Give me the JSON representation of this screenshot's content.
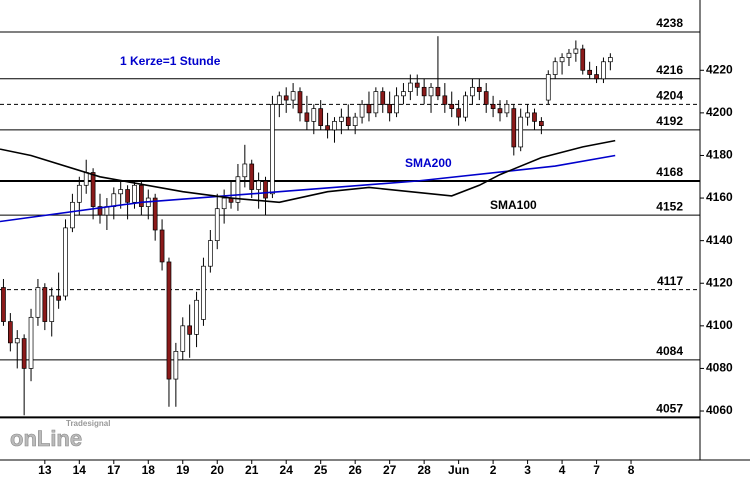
{
  "chart_data": {
    "type": "candlestick",
    "annotation": "1 Kerze=1 Stunde",
    "logo": {
      "small": "Tradesignal",
      "big": "onLine"
    },
    "xlim": [
      -0.5,
      101
    ],
    "xticks": [
      {
        "value": 6,
        "label": "13"
      },
      {
        "value": 11,
        "label": "14"
      },
      {
        "value": 16,
        "label": "17"
      },
      {
        "value": 21,
        "label": "18"
      },
      {
        "value": 26,
        "label": "19"
      },
      {
        "value": 31,
        "label": "20"
      },
      {
        "value": 36,
        "label": "21"
      },
      {
        "value": 41,
        "label": "24"
      },
      {
        "value": 46,
        "label": "25"
      },
      {
        "value": 51,
        "label": "26"
      },
      {
        "value": 56,
        "label": "27"
      },
      {
        "value": 61,
        "label": "28"
      },
      {
        "value": 66,
        "label": "Jun"
      },
      {
        "value": 71,
        "label": "2"
      },
      {
        "value": 76,
        "label": "3"
      },
      {
        "value": 81,
        "label": "4"
      },
      {
        "value": 86,
        "label": "7"
      },
      {
        "value": 91,
        "label": "8"
      }
    ],
    "ylim": [
      4037,
      4253
    ],
    "yticks": [
      4060,
      4080,
      4100,
      4120,
      4140,
      4160,
      4180,
      4200,
      4220
    ],
    "up_color": "#ffffff",
    "down_color": "#8b1a1a",
    "candles": {
      "open": [
        4118,
        4102,
        4092,
        4094,
        4080,
        4104,
        4118,
        4102,
        4114,
        4114,
        4146,
        4158,
        4166,
        4172,
        4156,
        4152,
        4156,
        4162,
        4164,
        4158,
        4166,
        4156,
        4160,
        4145,
        4130,
        4075,
        4088,
        4100,
        4096,
        4103,
        4128,
        4140,
        4155,
        4160,
        4158,
        4170,
        4176,
        4164,
        4168,
        4162,
        4204,
        4208,
        4206,
        4210,
        4200,
        4196,
        4202,
        4194,
        4192,
        4196,
        4198,
        4194,
        4198,
        4204,
        4200,
        4210,
        4204,
        4200,
        4208,
        4210,
        4214,
        4212,
        4208,
        4212,
        4208,
        4204,
        4202,
        4198,
        4208,
        4212,
        4210,
        4204,
        4202,
        4200,
        4202,
        4184,
        4198,
        4200,
        4196,
        4206,
        4218,
        4224,
        4226,
        4228,
        4230,
        4220,
        4218,
        4216,
        4224
      ],
      "high": [
        4122,
        4106,
        4098,
        4096,
        4108,
        4122,
        4120,
        4118,
        4125,
        4150,
        4162,
        4170,
        4178,
        4174,
        4162,
        4160,
        4165,
        4168,
        4166,
        4168,
        4168,
        4164,
        4162,
        4150,
        4132,
        4092,
        4104,
        4110,
        4116,
        4132,
        4145,
        4162,
        4164,
        4168,
        4176,
        4185,
        4178,
        4172,
        4170,
        4208,
        4210,
        4212,
        4214,
        4212,
        4208,
        4204,
        4206,
        4200,
        4198,
        4202,
        4204,
        4200,
        4206,
        4210,
        4212,
        4212,
        4210,
        4212,
        4214,
        4218,
        4218,
        4216,
        4214,
        4236,
        4214,
        4210,
        4206,
        4210,
        4216,
        4216,
        4214,
        4208,
        4206,
        4206,
        4204,
        4202,
        4204,
        4202,
        4198,
        4220,
        4226,
        4228,
        4230,
        4234,
        4232,
        4224,
        4222,
        4226,
        4228
      ],
      "low": [
        4100,
        4088,
        4080,
        4058,
        4074,
        4100,
        4098,
        4095,
        4108,
        4112,
        4144,
        4152,
        4162,
        4150,
        4148,
        4145,
        4150,
        4155,
        4150,
        4155,
        4152,
        4150,
        4140,
        4126,
        4062,
        4062,
        4084,
        4085,
        4090,
        4100,
        4125,
        4136,
        4148,
        4155,
        4154,
        4165,
        4160,
        4155,
        4152,
        4160,
        4198,
        4200,
        4202,
        4196,
        4192,
        4190,
        4192,
        4188,
        4186,
        4190,
        4192,
        4190,
        4195,
        4196,
        4198,
        4200,
        4196,
        4198,
        4204,
        4206,
        4208,
        4204,
        4200,
        4206,
        4200,
        4198,
        4194,
        4196,
        4204,
        4206,
        4200,
        4198,
        4196,
        4198,
        4180,
        4182,
        4194,
        4192,
        4190,
        4204,
        4216,
        4218,
        4222,
        4224,
        4218,
        4216,
        4214,
        4214,
        4220
      ],
      "close": [
        4102,
        4092,
        4094,
        4080,
        4104,
        4118,
        4102,
        4114,
        4112,
        4146,
        4158,
        4166,
        4172,
        4156,
        4152,
        4156,
        4162,
        4164,
        4158,
        4166,
        4156,
        4160,
        4145,
        4130,
        4075,
        4088,
        4100,
        4096,
        4112,
        4128,
        4140,
        4155,
        4160,
        4158,
        4170,
        4176,
        4164,
        4168,
        4160,
        4204,
        4208,
        4206,
        4210,
        4200,
        4196,
        4202,
        4194,
        4192,
        4196,
        4198,
        4194,
        4198,
        4204,
        4200,
        4210,
        4204,
        4200,
        4208,
        4210,
        4214,
        4212,
        4208,
        4212,
        4208,
        4204,
        4202,
        4198,
        4208,
        4212,
        4210,
        4204,
        4202,
        4200,
        4204,
        4184,
        4198,
        4200,
        4196,
        4194,
        4218,
        4224,
        4226,
        4228,
        4230,
        4220,
        4218,
        4216,
        4224,
        4226
      ]
    },
    "series": [
      {
        "name": "SMA200",
        "color": "#0000cc",
        "x": [
          -0.5,
          20,
          40,
          60,
          80,
          88.7
        ],
        "values": [
          4149,
          4158,
          4163,
          4168,
          4175,
          4180
        ]
      },
      {
        "name": "SMA100",
        "color": "#000000",
        "x": [
          -0.5,
          4,
          14,
          26,
          33,
          40,
          47,
          53,
          59,
          65,
          69,
          72,
          78,
          84,
          88.7
        ],
        "values": [
          4183,
          4180,
          4170,
          4163,
          4160,
          4158,
          4163,
          4165,
          4163,
          4161,
          4166,
          4171,
          4179,
          4184,
          4187
        ]
      }
    ],
    "levels": [
      {
        "value": 4238,
        "style": "solid"
      },
      {
        "value": 4216,
        "style": "solid"
      },
      {
        "value": 4204,
        "style": "dashed"
      },
      {
        "value": 4192,
        "style": "solid"
      },
      {
        "value": 4168,
        "style": "thick"
      },
      {
        "value": 4152,
        "style": "solid"
      },
      {
        "value": 4117,
        "style": "dashed"
      },
      {
        "value": 4084,
        "style": "solid"
      },
      {
        "value": 4057,
        "style": "thick"
      }
    ]
  }
}
